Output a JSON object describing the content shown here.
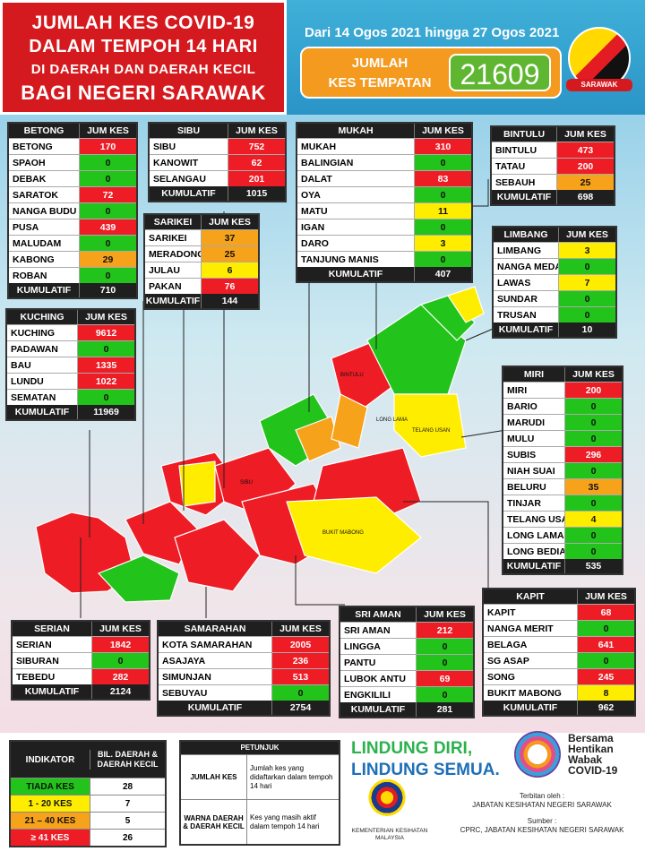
{
  "header": {
    "title_lines": [
      "JUMLAH KES COVID-19",
      "DALAM TEMPOH 14 HARI",
      "DI DAERAH DAN DAERAH KECIL",
      "BAGI NEGERI SARAWAK"
    ],
    "date_range": "Dari 14 Ogos 2021 hingga 27 Ogos 2021",
    "total_label_1": "JUMLAH",
    "total_label_2": "KES TEMPATAN",
    "total_value": "21609",
    "flag_text": "SARAWAK"
  },
  "colors": {
    "red": "#ee1c25",
    "green": "#22c31a",
    "yellow": "#ffed00",
    "orange": "#f7a21b",
    "header_red": "#d51a1f"
  },
  "col_header": "JUM KES",
  "total_label": "KUMULATIF",
  "divisions": {
    "betong": {
      "name": "BETONG",
      "rows": [
        [
          "BETONG",
          "170",
          "red"
        ],
        [
          "SPAOH",
          "0",
          "green"
        ],
        [
          "DEBAK",
          "0",
          "green"
        ],
        [
          "SARATOK",
          "72",
          "red"
        ],
        [
          "NANGA BUDU",
          "0",
          "green"
        ],
        [
          "PUSA",
          "439",
          "red"
        ],
        [
          "MALUDAM",
          "0",
          "green"
        ],
        [
          "KABONG",
          "29",
          "orange"
        ],
        [
          "ROBAN",
          "0",
          "green"
        ]
      ],
      "total": "710"
    },
    "sibu": {
      "name": "SIBU",
      "rows": [
        [
          "SIBU",
          "752",
          "red"
        ],
        [
          "KANOWIT",
          "62",
          "red"
        ],
        [
          "SELANGAU",
          "201",
          "red"
        ]
      ],
      "total": "1015"
    },
    "sarikei": {
      "name": "SARIKEI",
      "rows": [
        [
          "SARIKEI",
          "37",
          "orange"
        ],
        [
          "MERADONG",
          "25",
          "orange"
        ],
        [
          "JULAU",
          "6",
          "yellow"
        ],
        [
          "PAKAN",
          "76",
          "red"
        ]
      ],
      "total": "144"
    },
    "mukah": {
      "name": "MUKAH",
      "rows": [
        [
          "MUKAH",
          "310",
          "red"
        ],
        [
          "BALINGIAN",
          "0",
          "green"
        ],
        [
          "DALAT",
          "83",
          "red"
        ],
        [
          "OYA",
          "0",
          "green"
        ],
        [
          "MATU",
          "11",
          "yellow"
        ],
        [
          "IGAN",
          "0",
          "green"
        ],
        [
          "DARO",
          "3",
          "yellow"
        ],
        [
          "TANJUNG MANIS",
          "0",
          "green"
        ]
      ],
      "total": "407"
    },
    "bintulu": {
      "name": "BINTULU",
      "rows": [
        [
          "BINTULU",
          "473",
          "red"
        ],
        [
          "TATAU",
          "200",
          "red"
        ],
        [
          "SEBAUH",
          "25",
          "orange"
        ]
      ],
      "total": "698"
    },
    "limbang": {
      "name": "LIMBANG",
      "rows": [
        [
          "LIMBANG",
          "3",
          "yellow"
        ],
        [
          "NANGA MEDAMIT",
          "0",
          "green"
        ],
        [
          "LAWAS",
          "7",
          "yellow"
        ],
        [
          "SUNDAR",
          "0",
          "green"
        ],
        [
          "TRUSAN",
          "0",
          "green"
        ]
      ],
      "total": "10"
    },
    "kuching": {
      "name": "KUCHING",
      "rows": [
        [
          "KUCHING",
          "9612",
          "red"
        ],
        [
          "PADAWAN",
          "0",
          "green"
        ],
        [
          "BAU",
          "1335",
          "red"
        ],
        [
          "LUNDU",
          "1022",
          "red"
        ],
        [
          "SEMATAN",
          "0",
          "green"
        ]
      ],
      "total": "11969"
    },
    "miri": {
      "name": "MIRI",
      "rows": [
        [
          "MIRI",
          "200",
          "red"
        ],
        [
          "BARIO",
          "0",
          "green"
        ],
        [
          "MARUDI",
          "0",
          "green"
        ],
        [
          "MULU",
          "0",
          "green"
        ],
        [
          "SUBIS",
          "296",
          "red"
        ],
        [
          "NIAH SUAI",
          "0",
          "green"
        ],
        [
          "BELURU",
          "35",
          "orange"
        ],
        [
          "TINJAR",
          "0",
          "green"
        ],
        [
          "TELANG USAN",
          "4",
          "yellow"
        ],
        [
          "LONG LAMA",
          "0",
          "green"
        ],
        [
          "LONG BEDIAN",
          "0",
          "green"
        ]
      ],
      "total": "535"
    },
    "kapit": {
      "name": "KAPIT",
      "rows": [
        [
          "KAPIT",
          "68",
          "red"
        ],
        [
          "NANGA MERIT",
          "0",
          "green"
        ],
        [
          "BELAGA",
          "641",
          "red"
        ],
        [
          "SG ASAP",
          "0",
          "green"
        ],
        [
          "SONG",
          "245",
          "red"
        ],
        [
          "BUKIT MABONG",
          "8",
          "yellow"
        ]
      ],
      "total": "962"
    },
    "serian": {
      "name": "SERIAN",
      "rows": [
        [
          "SERIAN",
          "1842",
          "red"
        ],
        [
          "SIBURAN",
          "0",
          "green"
        ],
        [
          "TEBEDU",
          "282",
          "red"
        ]
      ],
      "total": "2124"
    },
    "samarahan": {
      "name": "SAMARAHAN",
      "rows": [
        [
          "KOTA SAMARAHAN",
          "2005",
          "red"
        ],
        [
          "ASAJAYA",
          "236",
          "red"
        ],
        [
          "SIMUNJAN",
          "513",
          "red"
        ],
        [
          "SEBUYAU",
          "0",
          "green"
        ]
      ],
      "total": "2754"
    },
    "sri_aman": {
      "name": "SRI AMAN",
      "rows": [
        [
          "SRI AMAN",
          "212",
          "red"
        ],
        [
          "LINGGA",
          "0",
          "green"
        ],
        [
          "PANTU",
          "0",
          "green"
        ],
        [
          "LUBOK ANTU",
          "69",
          "red"
        ],
        [
          "ENGKILILI",
          "0",
          "green"
        ]
      ],
      "total": "281"
    }
  },
  "map_labels": [
    "BUKIT MABONG",
    "TELANG USAN",
    "LONG LAMA",
    "SIBU",
    "BINTULU"
  ],
  "indicator": {
    "header_a": "INDIKATOR",
    "header_b": "BIL. DAERAH & DAERAH KECIL",
    "rows": [
      [
        "TIADA KES",
        "28",
        "green"
      ],
      [
        "1 - 20 KES",
        "7",
        "yellow"
      ],
      [
        "21 – 40 KES",
        "5",
        "orange"
      ],
      [
        "≥ 41 KES",
        "26",
        "red"
      ]
    ]
  },
  "petunjuk": {
    "title": "PETUNJUK",
    "rows": [
      [
        "JUMLAH KES",
        "Jumlah kes yang didaftarkan dalam tempoh 14 hari"
      ],
      [
        "WARNA DAERAH & DAERAH KECIL",
        "Kes yang masih aktif dalam tempoh 14 hari"
      ]
    ]
  },
  "slogan": {
    "line1": "LINDUNG DIRI,",
    "line2": "LINDUNG SEMUA."
  },
  "campaign": {
    "l1": "Bersama",
    "l2": "Hentikan",
    "l3": "Wabak",
    "l4": "COVID-19"
  },
  "ministry": "KEMENTERIAN KESIHATAN MALAYSIA",
  "publisher_label": "Terbitan oleh :",
  "publisher": "JABATAN KESIHATAN NEGERI SARAWAK",
  "source_label": "Sumber :",
  "source": "CPRC, JABATAN KESIHATAN NEGERI SARAWAK"
}
